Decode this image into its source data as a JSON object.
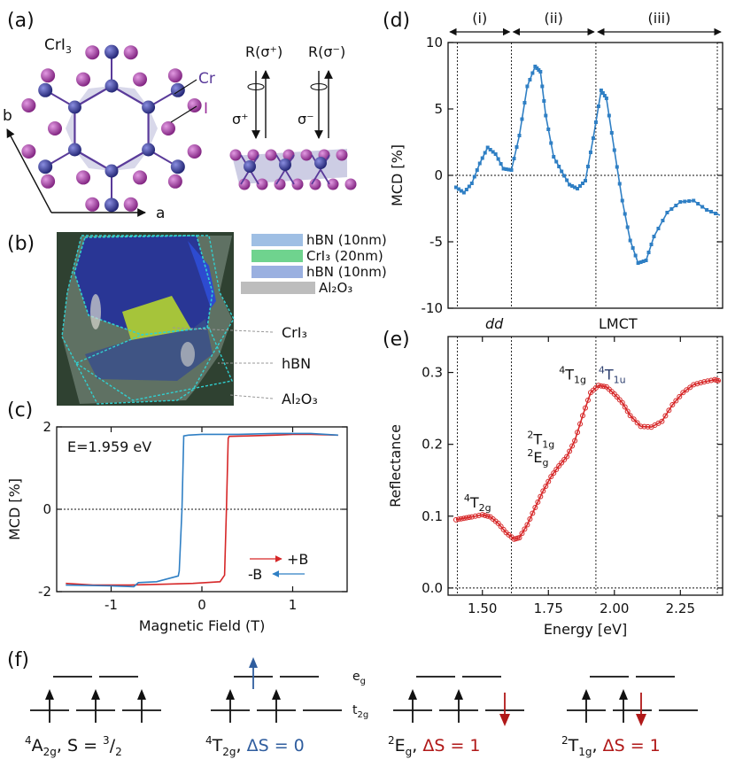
{
  "panels": {
    "a": "(a)",
    "b": "(b)",
    "c": "(c)",
    "d": "(d)",
    "e": "(e)",
    "f": "(f)"
  },
  "panel_a": {
    "material": "CrI",
    "material_sub": "3",
    "cr_label": "Cr",
    "i_label": "I",
    "axis_a": "a",
    "axis_b": "b",
    "r_plus": "R(σ⁺)",
    "r_minus": "R(σ⁻)",
    "sigma_plus": "σ⁺",
    "sigma_minus": "σ⁻",
    "colors": {
      "cr": "#2d2f8f",
      "i": "#9a2f9a",
      "bond": "#5a3b9a",
      "octahedra": "#b8b8d8"
    }
  },
  "panel_b": {
    "legend": [
      {
        "label": "hBN (10nm)",
        "color": "#9fbfe4"
      },
      {
        "label": "CrI₃ (20nm)",
        "color": "#6fd38e"
      },
      {
        "label": "hBN (10nm)",
        "color": "#9ab0e0"
      },
      {
        "label": "Al₂O₃",
        "color": "#bdbdbd"
      }
    ],
    "annotations": [
      "CrI₃",
      "hBN",
      "Al₂O₃"
    ]
  },
  "panel_f": {
    "eg": "e",
    "eg_sub": "g",
    "t2g": "t",
    "t2g_sub": "2g",
    "states": [
      {
        "term_sup": "4",
        "term": "A",
        "term_sub": "2g",
        "rest": ", S = ",
        "frac_num": "3",
        "frac_den": "2",
        "color": "#111111"
      },
      {
        "term_sup": "4",
        "term": "T",
        "term_sub": "2g",
        "rest": ", ",
        "delta": "ΔS = 0",
        "color": "#2f5d9e"
      },
      {
        "term_sup": "2",
        "term": "E",
        "term_sub": "g",
        "rest": ", ",
        "delta": "ΔS = 1",
        "color": "#b01818"
      },
      {
        "term_sup": "2",
        "term": "T",
        "term_sub": "1g",
        "rest": ", ",
        "delta": "ΔS = 1",
        "color": "#b01818"
      }
    ]
  },
  "chart_data": [
    {
      "id": "c",
      "type": "line",
      "title": "",
      "xlabel": "Magnetic Field (T)",
      "ylabel": "MCD [%]",
      "xlim": [
        -1.6,
        1.6
      ],
      "ylim": [
        -2,
        2
      ],
      "xticks": [
        -1,
        0,
        1
      ],
      "yticks": [
        -2,
        0,
        2
      ],
      "annotation": "E=1.959 eV",
      "legend": [
        "+B",
        "-B"
      ],
      "legend_placement": "bottom-right",
      "zero_line": true,
      "series": [
        {
          "name": "+B",
          "color": "#d62728",
          "x": [
            -1.5,
            -1.2,
            -0.8,
            -0.4,
            -0.1,
            0.2,
            0.25,
            0.27,
            0.29,
            0.3,
            0.5,
            0.8,
            1.0,
            1.2,
            1.5
          ],
          "y": [
            -1.8,
            -1.84,
            -1.84,
            -1.82,
            -1.8,
            -1.76,
            -1.6,
            0.0,
            1.72,
            1.77,
            1.78,
            1.8,
            1.82,
            1.82,
            1.8
          ]
        },
        {
          "name": "-B",
          "color": "#2f7fc4",
          "x": [
            1.5,
            1.2,
            0.8,
            0.4,
            0.0,
            -0.15,
            -0.2,
            -0.22,
            -0.25,
            -0.26,
            -0.5,
            -0.7,
            -0.75,
            -1.0,
            -1.5
          ],
          "y": [
            1.8,
            1.84,
            1.84,
            1.82,
            1.82,
            1.8,
            1.78,
            0.0,
            -1.5,
            -1.62,
            -1.76,
            -1.78,
            -1.88,
            -1.86,
            -1.84
          ]
        }
      ]
    },
    {
      "id": "d",
      "type": "line",
      "title": "",
      "xlabel": "",
      "ylabel": "MCD [%]",
      "xlim": [
        1.37,
        2.41
      ],
      "ylim": [
        -10,
        10
      ],
      "yticks": [
        -10,
        -5,
        0,
        5,
        10
      ],
      "regions": [
        "(i)",
        "(ii)",
        "(iii)"
      ],
      "region_bounds": [
        1.37,
        1.61,
        1.93,
        2.41
      ],
      "bottom_labels": [
        "dd",
        "LMCT"
      ],
      "vlines": [
        1.405,
        1.61,
        1.93,
        2.39
      ],
      "zero_line": true,
      "series": [
        {
          "name": "",
          "color": "#2f7fc4",
          "x": [
            1.4,
            1.43,
            1.46,
            1.49,
            1.52,
            1.55,
            1.58,
            1.61,
            1.64,
            1.67,
            1.7,
            1.72,
            1.74,
            1.77,
            1.8,
            1.83,
            1.86,
            1.89,
            1.92,
            1.95,
            1.97,
            2.0,
            2.03,
            2.06,
            2.09,
            2.12,
            2.15,
            2.2,
            2.25,
            2.3,
            2.35,
            2.4
          ],
          "y": [
            -0.9,
            -1.3,
            -0.6,
            0.9,
            2.1,
            1.6,
            0.5,
            0.4,
            3.0,
            6.7,
            8.2,
            7.8,
            4.5,
            1.4,
            0.3,
            -0.7,
            -1.0,
            -0.4,
            2.8,
            6.4,
            5.8,
            1.9,
            -1.9,
            -4.9,
            -6.6,
            -6.4,
            -4.6,
            -2.8,
            -2.0,
            -1.9,
            -2.6,
            -3.0
          ]
        }
      ]
    },
    {
      "id": "e",
      "type": "line",
      "title": "",
      "xlabel": "Energy [eV]",
      "ylabel": "Reflectance",
      "xlim": [
        1.37,
        2.41
      ],
      "ylim": [
        -0.01,
        0.35
      ],
      "xticks": [
        1.5,
        1.75,
        2.0,
        2.25
      ],
      "xticklabels": [
        "1.50",
        "1.75",
        "2.00",
        "2.25"
      ],
      "yticks": [
        0.0,
        0.1,
        0.2,
        0.3
      ],
      "yticklabels": [
        "0.0",
        "0.1",
        "0.2",
        "0.3"
      ],
      "vlines": [
        1.405,
        1.61,
        1.93,
        2.39
      ],
      "zero_line": true,
      "annotations": [
        {
          "sup": "4",
          "main": "T",
          "sub": "2g",
          "x": 1.43,
          "y": 0.112,
          "color": "#111111"
        },
        {
          "sup": "2",
          "main": "T",
          "sub": "1g",
          "x": 1.67,
          "y": 0.2,
          "color": "#111111"
        },
        {
          "sup": "2",
          "main": "E",
          "sub": "g",
          "x": 1.67,
          "y": 0.175,
          "color": "#111111"
        },
        {
          "sup": "4",
          "main": "T",
          "sub": "1g",
          "x": 1.79,
          "y": 0.29,
          "color": "#111111"
        },
        {
          "sup": "4",
          "main": "T",
          "sub": "1u",
          "x": 1.94,
          "y": 0.29,
          "color": "#2c3e6e"
        }
      ],
      "series": [
        {
          "name": "",
          "color": "#d62728",
          "x": [
            1.4,
            1.43,
            1.46,
            1.5,
            1.53,
            1.56,
            1.59,
            1.62,
            1.64,
            1.67,
            1.7,
            1.73,
            1.76,
            1.79,
            1.82,
            1.85,
            1.88,
            1.91,
            1.94,
            1.97,
            2.0,
            2.03,
            2.06,
            2.1,
            2.14,
            2.18,
            2.22,
            2.26,
            2.3,
            2.34,
            2.38,
            2.4
          ],
          "y": [
            0.095,
            0.097,
            0.099,
            0.102,
            0.099,
            0.09,
            0.077,
            0.068,
            0.07,
            0.088,
            0.112,
            0.135,
            0.155,
            0.17,
            0.183,
            0.205,
            0.24,
            0.272,
            0.282,
            0.28,
            0.27,
            0.258,
            0.24,
            0.225,
            0.224,
            0.232,
            0.255,
            0.272,
            0.283,
            0.287,
            0.29,
            0.288
          ]
        }
      ]
    }
  ]
}
